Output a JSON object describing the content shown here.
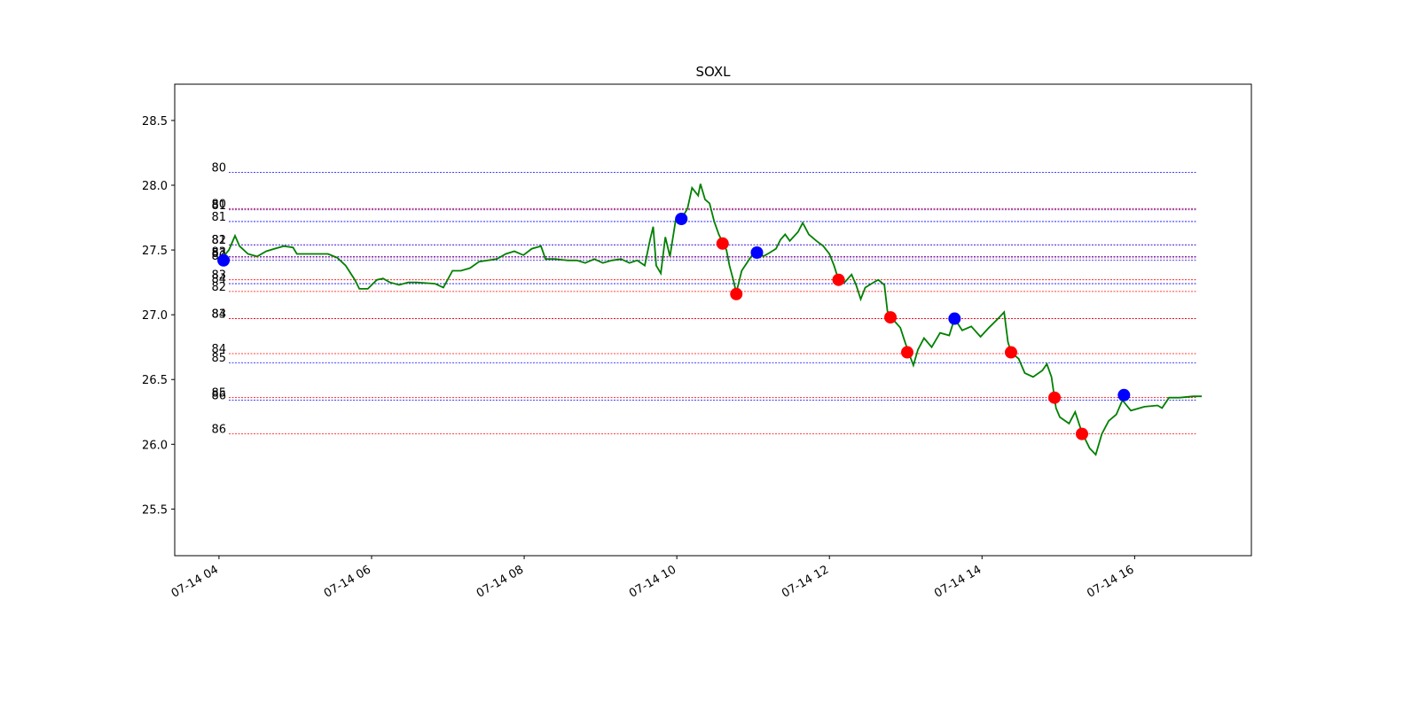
{
  "chart_data": {
    "type": "line",
    "title": "SOXL",
    "xlim": [
      3.42,
      17.53
    ],
    "ylim": [
      25.14,
      28.78
    ],
    "xticks": [
      {
        "value": 4,
        "label": "07-14 04"
      },
      {
        "value": 6,
        "label": "07-14 06"
      },
      {
        "value": 8,
        "label": "07-14 08"
      },
      {
        "value": 10,
        "label": "07-14 10"
      },
      {
        "value": 12,
        "label": "07-14 12"
      },
      {
        "value": 14,
        "label": "07-14 14"
      },
      {
        "value": 16,
        "label": "07-14 16"
      }
    ],
    "yticks": [
      25.5,
      {
        "value": 26,
        "label": "26.0"
      },
      26.5,
      {
        "value": 27,
        "label": "27.0"
      },
      27.5,
      {
        "value": 28,
        "label": "28.0"
      },
      28.5
    ],
    "levels": [
      {
        "label": "80",
        "value": 28.1,
        "color": "blue"
      },
      {
        "label": "80",
        "value": 27.82,
        "color": "red"
      },
      {
        "label": "81",
        "value": 27.81,
        "color": "blue"
      },
      {
        "label": "81",
        "value": 27.72,
        "color": "blue"
      },
      {
        "label": "81",
        "value": 27.54,
        "color": "red"
      },
      {
        "label": "82",
        "value": 27.54,
        "color": "blue"
      },
      {
        "label": "83",
        "value": 27.45,
        "color": "blue"
      },
      {
        "label": "82",
        "value": 27.44,
        "color": "red"
      },
      {
        "label": "80",
        "value": 27.42,
        "color": "blue"
      },
      {
        "label": "83",
        "value": 27.27,
        "color": "red"
      },
      {
        "label": "84",
        "value": 27.24,
        "color": "blue"
      },
      {
        "label": "82",
        "value": 27.18,
        "color": "red"
      },
      {
        "label": "83",
        "value": 26.97,
        "color": "blue"
      },
      {
        "label": "84",
        "value": 26.97,
        "color": "red"
      },
      {
        "label": "84",
        "value": 26.7,
        "color": "red"
      },
      {
        "label": "85",
        "value": 26.63,
        "color": "blue"
      },
      {
        "label": "85",
        "value": 26.36,
        "color": "red"
      },
      {
        "label": "86",
        "value": 26.34,
        "color": "blue"
      },
      {
        "label": "86",
        "value": 26.08,
        "color": "red"
      }
    ],
    "series": [
      {
        "color": "green",
        "x": [
          4.03,
          4.13,
          4.21,
          4.27,
          4.38,
          4.5,
          4.62,
          4.73,
          4.85,
          4.97,
          5.02,
          5.2,
          5.43,
          5.55,
          5.66,
          5.78,
          5.84,
          5.95,
          6.07,
          6.15,
          6.24,
          6.36,
          6.48,
          6.59,
          6.83,
          6.94,
          7.06,
          7.17,
          7.29,
          7.41,
          7.64,
          7.76,
          7.87,
          7.99,
          8.1,
          8.22,
          8.28,
          8.4,
          8.57,
          8.69,
          8.8,
          8.92,
          9.03,
          9.15,
          9.27,
          9.38,
          9.48,
          9.58,
          9.65,
          9.69,
          9.73,
          9.79,
          9.85,
          9.91,
          9.99,
          10.06,
          10.14,
          10.2,
          10.28,
          10.31,
          10.37,
          10.43,
          10.49,
          10.55,
          10.65,
          10.69,
          10.74,
          10.78,
          10.85,
          10.93,
          11.01,
          11.07,
          11.13,
          11.22,
          11.3,
          11.36,
          11.42,
          11.48,
          11.59,
          11.65,
          11.73,
          11.83,
          11.92,
          12.0,
          12.06,
          12.12,
          12.2,
          12.29,
          12.35,
          12.41,
          12.47,
          12.58,
          12.64,
          12.72,
          12.76,
          12.81,
          12.93,
          12.99,
          13.05,
          13.1,
          13.16,
          13.24,
          13.34,
          13.45,
          13.57,
          13.64,
          13.74,
          13.86,
          13.98,
          14.09,
          14.21,
          14.29,
          14.34,
          14.38,
          14.48,
          14.56,
          14.67,
          14.79,
          14.85,
          14.91,
          14.97,
          15.02,
          15.14,
          15.22,
          15.31,
          15.41,
          15.49,
          15.57,
          15.66,
          15.76,
          15.84,
          15.95,
          16.13,
          16.3,
          16.36,
          16.45,
          16.59,
          16.77,
          16.88
        ],
        "values": [
          27.43,
          27.5,
          27.61,
          27.53,
          27.47,
          27.45,
          27.49,
          27.51,
          27.53,
          27.52,
          27.47,
          27.47,
          27.47,
          27.44,
          27.38,
          27.27,
          27.2,
          27.2,
          27.27,
          27.28,
          27.25,
          27.23,
          27.25,
          27.25,
          27.24,
          27.21,
          27.34,
          27.34,
          27.36,
          27.41,
          27.43,
          27.47,
          27.49,
          27.46,
          27.51,
          27.53,
          27.43,
          27.43,
          27.42,
          27.42,
          27.4,
          27.43,
          27.4,
          27.42,
          27.43,
          27.4,
          27.42,
          27.38,
          27.58,
          27.68,
          27.38,
          27.32,
          27.6,
          27.45,
          27.75,
          27.74,
          27.82,
          27.98,
          27.92,
          28.01,
          27.89,
          27.86,
          27.72,
          27.62,
          27.5,
          27.38,
          27.27,
          27.17,
          27.34,
          27.41,
          27.48,
          27.51,
          27.45,
          27.48,
          27.51,
          27.58,
          27.62,
          27.57,
          27.64,
          27.71,
          27.62,
          27.57,
          27.53,
          27.47,
          27.38,
          27.27,
          27.25,
          27.31,
          27.23,
          27.12,
          27.21,
          27.25,
          27.27,
          27.23,
          27.03,
          26.98,
          26.9,
          26.79,
          26.69,
          26.61,
          26.73,
          26.82,
          26.75,
          26.86,
          26.84,
          26.97,
          26.88,
          26.91,
          26.83,
          26.9,
          26.97,
          27.02,
          26.79,
          26.71,
          26.66,
          26.55,
          26.52,
          26.57,
          26.62,
          26.52,
          26.28,
          26.21,
          26.16,
          26.25,
          26.09,
          25.97,
          25.92,
          26.08,
          26.18,
          26.23,
          26.34,
          26.26,
          26.29,
          26.3,
          26.28,
          26.36,
          26.36,
          26.37,
          26.37
        ]
      },
      {
        "type": "scatter",
        "color": "blue",
        "x": [
          4.06,
          10.06,
          11.05,
          13.64,
          15.86
        ],
        "values": [
          27.42,
          27.74,
          27.48,
          26.97,
          26.38
        ]
      },
      {
        "type": "scatter",
        "color": "red",
        "x": [
          10.6,
          10.78,
          12.12,
          12.8,
          13.02,
          14.38,
          14.95,
          15.31
        ],
        "values": [
          27.55,
          27.16,
          27.27,
          26.98,
          26.71,
          26.71,
          26.36,
          26.08
        ]
      }
    ]
  }
}
